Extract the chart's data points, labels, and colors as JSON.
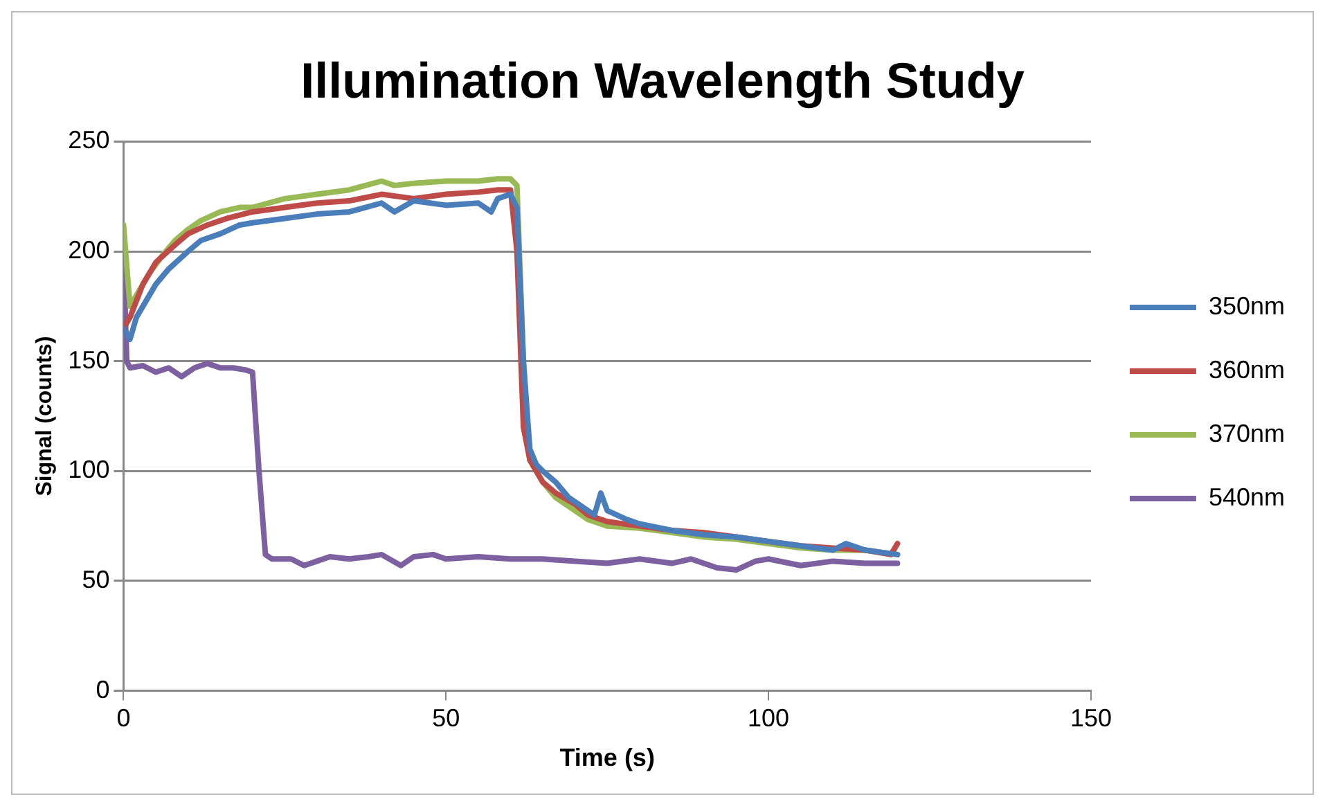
{
  "chart_data": {
    "type": "line",
    "title": "Illumination Wavelength Study",
    "xlabel": "Time (s)",
    "ylabel": "Signal (counts)",
    "xlim": [
      0,
      150
    ],
    "xticks": [
      0,
      50,
      100,
      150
    ],
    "ylim": [
      0,
      250
    ],
    "yticks": [
      0,
      50,
      100,
      150,
      200,
      250
    ],
    "grid": "y",
    "legend": "right",
    "marker": "none",
    "line_style": "solid",
    "series": [
      {
        "name": "350nm",
        "color": "#4a7ebb",
        "x": [
          0,
          1,
          2,
          3,
          5,
          7,
          10,
          12,
          15,
          18,
          20,
          25,
          30,
          35,
          40,
          42,
          45,
          50,
          55,
          57,
          58,
          60,
          61,
          62,
          63,
          64,
          65,
          67,
          69,
          71,
          73,
          74,
          75,
          78,
          80,
          85,
          90,
          95,
          100,
          105,
          110,
          112,
          115,
          120
        ],
        "values": [
          165,
          160,
          170,
          175,
          185,
          192,
          200,
          205,
          208,
          212,
          213,
          215,
          217,
          218,
          222,
          218,
          223,
          221,
          222,
          218,
          224,
          226,
          220,
          150,
          110,
          103,
          100,
          95,
          88,
          84,
          80,
          90,
          82,
          78,
          76,
          73,
          71,
          70,
          68,
          66,
          64,
          67,
          64,
          62
        ]
      },
      {
        "name": "360nm",
        "color": "#be4b48",
        "x": [
          0,
          1,
          3,
          5,
          8,
          10,
          13,
          16,
          20,
          25,
          30,
          35,
          40,
          45,
          50,
          55,
          58,
          60,
          61,
          62,
          63,
          65,
          67,
          70,
          72,
          75,
          80,
          85,
          90,
          95,
          100,
          105,
          110,
          115,
          119,
          120
        ],
        "values": [
          165,
          170,
          185,
          195,
          203,
          208,
          212,
          215,
          218,
          220,
          222,
          223,
          226,
          224,
          226,
          227,
          228,
          228,
          200,
          120,
          105,
          95,
          90,
          85,
          80,
          77,
          75,
          73,
          72,
          70,
          68,
          66,
          65,
          64,
          62,
          67
        ]
      },
      {
        "name": "370nm",
        "color": "#98b954",
        "x": [
          0,
          1,
          2,
          4,
          6,
          8,
          10,
          12,
          15,
          18,
          20,
          25,
          30,
          35,
          40,
          42,
          45,
          50,
          55,
          58,
          60,
          61,
          62,
          63,
          65,
          67,
          70,
          72,
          75,
          80,
          85,
          90,
          95,
          100,
          105,
          110,
          115,
          120
        ],
        "values": [
          212,
          175,
          180,
          190,
          198,
          205,
          210,
          214,
          218,
          220,
          220,
          224,
          226,
          228,
          232,
          230,
          231,
          232,
          232,
          233,
          233,
          230,
          150,
          105,
          95,
          88,
          82,
          78,
          75,
          74,
          72,
          70,
          69,
          67,
          65,
          64,
          64,
          62
        ]
      },
      {
        "name": "540nm",
        "color": "#7d60a0",
        "x": [
          0,
          0.5,
          1,
          3,
          5,
          7,
          9,
          11,
          13,
          15,
          17,
          19,
          20,
          21,
          22,
          23,
          26,
          28,
          30,
          32,
          35,
          38,
          40,
          43,
          45,
          48,
          50,
          55,
          60,
          65,
          70,
          75,
          80,
          85,
          88,
          92,
          95,
          98,
          100,
          105,
          110,
          115,
          120
        ],
        "values": [
          198,
          150,
          147,
          148,
          145,
          147,
          143,
          147,
          149,
          147,
          147,
          146,
          145,
          100,
          62,
          60,
          60,
          57,
          59,
          61,
          60,
          61,
          62,
          57,
          61,
          62,
          60,
          61,
          60,
          60,
          59,
          58,
          60,
          58,
          60,
          56,
          55,
          59,
          60,
          57,
          59,
          58,
          58
        ]
      }
    ]
  }
}
